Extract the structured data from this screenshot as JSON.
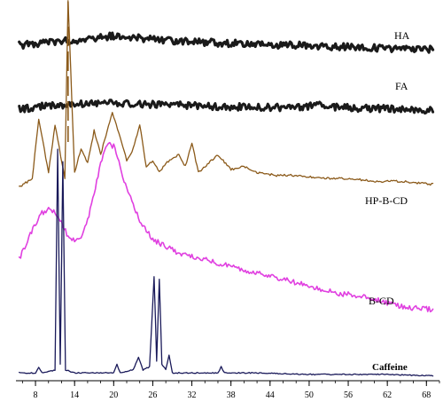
{
  "chart_data": {
    "type": "line",
    "title": "",
    "xlabel": "",
    "ylabel": "",
    "xlim": [
      5,
      70
    ],
    "x_ticks": [
      8,
      14,
      20,
      26,
      32,
      38,
      44,
      50,
      56,
      62,
      68
    ],
    "x_tick_labels": [
      "8",
      "14",
      "20",
      "26",
      "32",
      "38",
      "44",
      "50",
      "56",
      "62",
      "68"
    ],
    "grid": false,
    "legend": "none",
    "series": [
      {
        "name": "HA",
        "color": "#1a1a1a",
        "x": [
          5.5,
          10,
          14,
          17,
          20,
          23,
          26,
          30,
          36,
          44,
          52,
          60,
          69
        ],
        "y": [
          0.83,
          0.87,
          0.89,
          0.92,
          0.94,
          0.92,
          0.9,
          0.88,
          0.86,
          0.84,
          0.82,
          0.8,
          0.78
        ]
      },
      {
        "name": "FA",
        "color": "#1a1a1a",
        "x": [
          5.5,
          9,
          12,
          16,
          20,
          25,
          30,
          36,
          42,
          48,
          52,
          54,
          60,
          69
        ],
        "y": [
          0.68,
          0.71,
          0.72,
          0.74,
          0.74,
          0.73,
          0.72,
          0.71,
          0.7,
          0.7,
          0.72,
          0.7,
          0.69,
          0.67
        ]
      },
      {
        "name": "HP-B-CD",
        "color": "#8b5a1a",
        "x": [
          5.5,
          7.5,
          8.5,
          10,
          11,
          12.5,
          13,
          14,
          15,
          16,
          17,
          18,
          19,
          19.8,
          21,
          22,
          23,
          24,
          25,
          26,
          27,
          28,
          30,
          31,
          32,
          33,
          35,
          36,
          38,
          40,
          42,
          45,
          48,
          52,
          56,
          60,
          64,
          69
        ],
        "y": [
          0.37,
          0.4,
          0.6,
          0.42,
          0.58,
          0.4,
          1.0,
          0.42,
          0.5,
          0.45,
          0.56,
          0.48,
          0.56,
          0.62,
          0.54,
          0.46,
          0.5,
          0.58,
          0.44,
          0.46,
          0.42,
          0.45,
          0.48,
          0.44,
          0.52,
          0.42,
          0.46,
          0.48,
          0.43,
          0.44,
          0.42,
          0.41,
          0.41,
          0.4,
          0.4,
          0.39,
          0.39,
          0.38
        ]
      },
      {
        "name": "B-CD",
        "color": "#e040e0",
        "x": [
          5.5,
          7,
          8,
          9,
          10,
          11,
          12,
          13,
          14,
          15,
          16,
          17,
          18,
          19,
          20,
          21,
          22,
          24,
          26,
          28,
          30,
          32,
          34,
          36,
          38,
          40,
          42,
          44,
          46,
          48,
          50,
          52,
          54,
          56,
          58,
          60,
          62,
          64,
          66,
          69
        ],
        "y": [
          0.26,
          0.33,
          0.37,
          0.4,
          0.41,
          0.4,
          0.37,
          0.33,
          0.32,
          0.33,
          0.38,
          0.46,
          0.55,
          0.61,
          0.6,
          0.54,
          0.47,
          0.38,
          0.32,
          0.3,
          0.28,
          0.27,
          0.26,
          0.25,
          0.24,
          0.23,
          0.22,
          0.21,
          0.2,
          0.19,
          0.18,
          0.17,
          0.16,
          0.155,
          0.15,
          0.14,
          0.13,
          0.12,
          0.115,
          0.11
        ]
      },
      {
        "name": "Caffeine",
        "color": "#1a1a5a",
        "x": [
          5.5,
          8,
          8.5,
          9,
          11,
          11.4,
          11.8,
          12.2,
          12.6,
          14,
          17,
          20,
          20.5,
          21,
          23,
          23.8,
          24.5,
          25.5,
          26.2,
          26.6,
          27,
          27.4,
          28,
          28.5,
          29,
          32,
          36,
          36.5,
          37,
          42,
          50,
          56,
          62,
          69
        ],
        "y": [
          0.02,
          0.02,
          0.04,
          0.02,
          0.03,
          0.76,
          0.05,
          0.72,
          0.03,
          0.02,
          0.02,
          0.02,
          0.05,
          0.02,
          0.03,
          0.07,
          0.03,
          0.04,
          0.34,
          0.06,
          0.33,
          0.05,
          0.03,
          0.08,
          0.02,
          0.02,
          0.02,
          0.04,
          0.02,
          0.02,
          0.015,
          0.015,
          0.015,
          0.01
        ]
      }
    ]
  }
}
